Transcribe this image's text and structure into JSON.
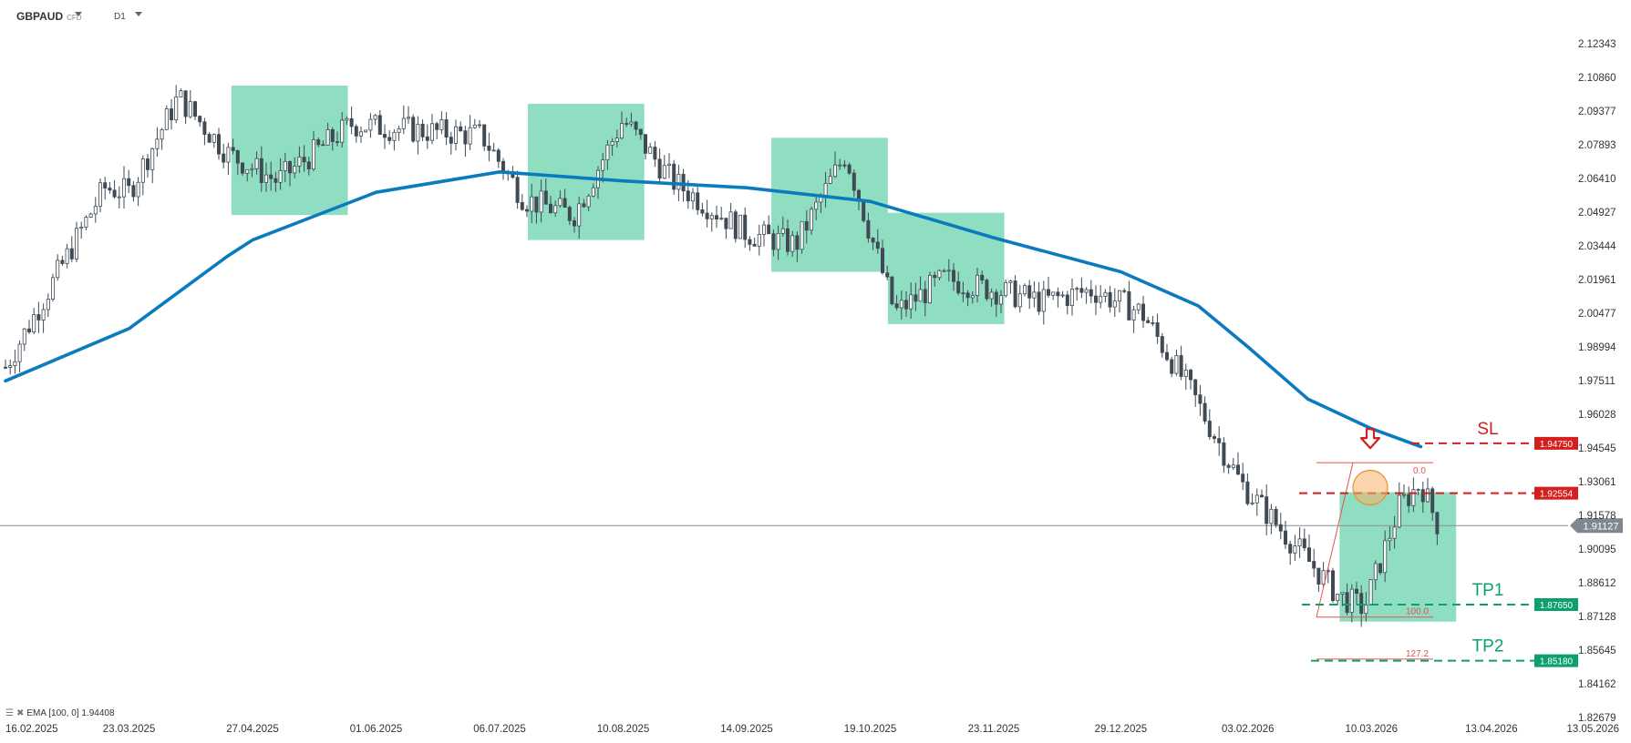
{
  "header": {
    "symbol": "GBPAUD",
    "instrument_type": "CFD",
    "timeframe": "D1"
  },
  "indicator": {
    "label": "EMA [100, 0] 1.94408",
    "icons": [
      "settings-icon",
      "close-icon"
    ]
  },
  "colors": {
    "ema": "#0a7bbd",
    "zone": "#7fd9b8",
    "sl": "#d41f1f",
    "tp": "#0d9f6e",
    "candle": "#3f4a54",
    "fib": "#e05454",
    "current_price_bg": "#7f8890",
    "circle": "#f6b36a"
  },
  "chart_data": {
    "type": "candlestick",
    "timeframe": "D1",
    "y_ticks": [
      "2.12343",
      "2.10860",
      "2.09377",
      "2.07893",
      "2.06410",
      "2.04927",
      "2.03444",
      "2.01961",
      "2.00477",
      "1.98994",
      "1.97511",
      "1.96028",
      "1.94545",
      "1.93061",
      "1.91578",
      "1.90095",
      "1.88612",
      "1.87128",
      "1.85645",
      "1.84162",
      "1.82679"
    ],
    "ylim": [
      1.82679,
      2.12343
    ],
    "x_ticks": [
      "16.02.2025",
      "23.03.2025",
      "27.04.2025",
      "01.06.2025",
      "06.07.2025",
      "10.08.2025",
      "14.09.2025",
      "19.10.2025",
      "23.11.2025",
      "29.12.2025",
      "03.02.2026",
      "10.03.2026",
      "13.04.2026",
      "13.05.2026"
    ],
    "price_path": [
      {
        "date": "16.02.2025",
        "close": 1.981
      },
      {
        "date": "02.03.2025",
        "close": 2.02
      },
      {
        "date": "16.03.2025",
        "close": 2.06
      },
      {
        "date": "23.03.2025",
        "close": 2.058
      },
      {
        "date": "06.04.2025",
        "close": 2.1
      },
      {
        "date": "20.04.2025",
        "close": 2.075
      },
      {
        "date": "04.05.2025",
        "close": 2.063
      },
      {
        "date": "25.05.2025",
        "close": 2.088
      },
      {
        "date": "15.06.2025",
        "close": 2.085
      },
      {
        "date": "01.07.2025",
        "close": 2.083
      },
      {
        "date": "13.07.2025",
        "close": 2.055
      },
      {
        "date": "27.07.2025",
        "close": 2.048
      },
      {
        "date": "10.08.2025",
        "close": 2.09
      },
      {
        "date": "24.08.2025",
        "close": 2.063
      },
      {
        "date": "14.09.2025",
        "close": 2.04
      },
      {
        "date": "28.09.2025",
        "close": 2.035
      },
      {
        "date": "12.10.2025",
        "close": 2.075
      },
      {
        "date": "26.10.2025",
        "close": 2.005
      },
      {
        "date": "09.11.2025",
        "close": 2.02
      },
      {
        "date": "23.11.2025",
        "close": 2.015
      },
      {
        "date": "07.12.2025",
        "close": 2.01
      },
      {
        "date": "21.12.2025",
        "close": 2.015
      },
      {
        "date": "04.01.2026",
        "close": 2.005
      },
      {
        "date": "18.01.2026",
        "close": 1.97
      },
      {
        "date": "01.02.2026",
        "close": 1.93
      },
      {
        "date": "15.02.2026",
        "close": 1.905
      },
      {
        "date": "01.03.2026",
        "close": 1.88
      },
      {
        "date": "08.03.2026",
        "close": 1.875
      },
      {
        "date": "18.03.2026",
        "close": 1.92
      },
      {
        "date": "24.03.2026",
        "close": 1.93
      },
      {
        "date": "29.03.2026",
        "close": 1.911
      }
    ],
    "ema": {
      "name": "EMA [100, 0]",
      "last": 1.94408,
      "points": [
        {
          "date": "16.02.2025",
          "value": 1.975
        },
        {
          "date": "23.03.2025",
          "value": 1.998
        },
        {
          "date": "20.04.2025",
          "value": 2.03
        },
        {
          "date": "27.04.2025",
          "value": 2.037
        },
        {
          "date": "01.06.2025",
          "value": 2.058
        },
        {
          "date": "06.07.2025",
          "value": 2.067
        },
        {
          "date": "10.08.2025",
          "value": 2.063
        },
        {
          "date": "14.09.2025",
          "value": 2.06
        },
        {
          "date": "19.10.2025",
          "value": 2.054
        },
        {
          "date": "23.11.2025",
          "value": 2.038
        },
        {
          "date": "29.12.2025",
          "value": 2.023
        },
        {
          "date": "20.01.2026",
          "value": 2.008
        },
        {
          "date": "03.02.2026",
          "value": 1.99
        },
        {
          "date": "20.02.2026",
          "value": 1.967
        },
        {
          "date": "10.03.2026",
          "value": 1.954
        },
        {
          "date": "24.03.2026",
          "value": 1.946
        }
      ]
    },
    "zones": [
      {
        "from": "21.04.2025",
        "to": "24.05.2025",
        "low": 2.048,
        "high": 2.105
      },
      {
        "from": "14.07.2025",
        "to": "16.08.2025",
        "low": 2.037,
        "high": 2.097
      },
      {
        "from": "21.09.2025",
        "to": "24.10.2025",
        "low": 2.023,
        "high": 2.082
      },
      {
        "from": "24.10.2025",
        "to": "26.11.2025",
        "low": 2.0,
        "high": 2.049
      },
      {
        "from": "01.03.2026",
        "to": "03.04.2026",
        "low": 1.869,
        "high": 1.926
      }
    ],
    "levels": {
      "sl": {
        "label": "SL",
        "price": "1.94750"
      },
      "entry": {
        "price": "1.92554"
      },
      "current": {
        "price": "1.91127"
      },
      "tp1": {
        "label": "TP1",
        "price": "1.87650"
      },
      "tp2": {
        "label": "TP2",
        "price": "1.85180"
      }
    },
    "fibonacci": {
      "levels": [
        "0.0",
        "100.0",
        "127.2"
      ],
      "high": 1.939,
      "low": 1.871
    }
  }
}
